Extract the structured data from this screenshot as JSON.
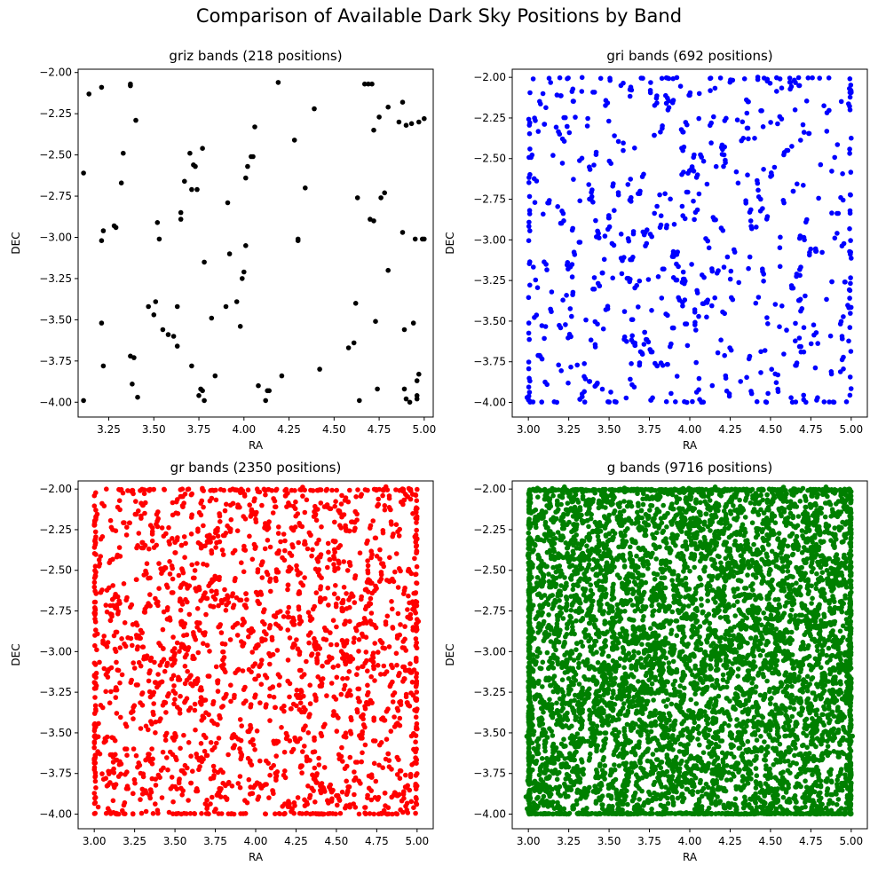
{
  "figure": {
    "title": "Comparison of Available Dark Sky Positions by Band"
  },
  "chart_data": [
    {
      "type": "scatter",
      "title": "griz bands (218 positions)",
      "xlabel": "RA",
      "ylabel": "DEC",
      "xlim": [
        3.08,
        5.05
      ],
      "ylim": [
        -4.09,
        -1.98
      ],
      "xticks": [
        "3.25",
        "3.50",
        "3.75",
        "4.00",
        "4.25",
        "4.50",
        "4.75",
        "5.00"
      ],
      "yticks": [
        "-4.00",
        "-3.75",
        "-3.50",
        "-3.25",
        "-3.00",
        "-2.75",
        "-2.50",
        "-2.25",
        "-2.00"
      ],
      "color": "#000000",
      "points": [
        [
          3.11,
          -2.61
        ],
        [
          3.14,
          -2.13
        ],
        [
          3.21,
          -2.09
        ],
        [
          3.21,
          -3.02
        ],
        [
          3.22,
          -2.96
        ],
        [
          3.28,
          -2.93
        ],
        [
          3.29,
          -2.94
        ],
        [
          3.32,
          -2.67
        ],
        [
          3.33,
          -2.49
        ],
        [
          3.37,
          -2.07
        ],
        [
          3.37,
          -2.08
        ],
        [
          3.4,
          -2.29
        ],
        [
          3.21,
          -3.52
        ],
        [
          3.22,
          -3.78
        ],
        [
          3.11,
          -3.99
        ],
        [
          3.37,
          -3.72
        ],
        [
          3.38,
          -3.89
        ],
        [
          3.39,
          -3.73
        ],
        [
          3.41,
          -3.97
        ],
        [
          3.47,
          -3.42
        ],
        [
          3.5,
          -3.47
        ],
        [
          3.51,
          -3.39
        ],
        [
          3.52,
          -2.91
        ],
        [
          3.53,
          -3.01
        ],
        [
          3.55,
          -3.56
        ],
        [
          3.58,
          -3.59
        ],
        [
          3.61,
          -3.6
        ],
        [
          3.63,
          -3.42
        ],
        [
          3.63,
          -3.66
        ],
        [
          3.65,
          -2.85
        ],
        [
          3.65,
          -2.89
        ],
        [
          3.67,
          -2.66
        ],
        [
          3.7,
          -2.49
        ],
        [
          3.71,
          -2.71
        ],
        [
          3.72,
          -2.56
        ],
        [
          3.74,
          -2.71
        ],
        [
          3.73,
          -2.57
        ],
        [
          3.77,
          -2.46
        ],
        [
          3.78,
          -3.15
        ],
        [
          3.71,
          -3.78
        ],
        [
          3.75,
          -3.96
        ],
        [
          3.76,
          -3.92
        ],
        [
          3.78,
          -3.99
        ],
        [
          3.82,
          -3.49
        ],
        [
          3.84,
          -3.84
        ],
        [
          3.9,
          -3.42
        ],
        [
          3.91,
          -2.79
        ],
        [
          3.92,
          -3.1
        ],
        [
          3.96,
          -3.39
        ],
        [
          3.98,
          -3.54
        ],
        [
          3.99,
          -3.25
        ],
        [
          4.0,
          -3.21
        ],
        [
          4.01,
          -3.05
        ],
        [
          4.01,
          -2.64
        ],
        [
          4.02,
          -2.57
        ],
        [
          4.04,
          -2.51
        ],
        [
          4.05,
          -2.51
        ],
        [
          4.06,
          -2.33
        ],
        [
          4.08,
          -3.9
        ],
        [
          4.12,
          -3.99
        ],
        [
          4.13,
          -3.93
        ],
        [
          4.14,
          -3.93
        ],
        [
          4.19,
          -2.06
        ],
        [
          4.21,
          -3.84
        ],
        [
          4.28,
          -2.41
        ],
        [
          4.3,
          -3.02
        ],
        [
          4.3,
          -3.01
        ],
        [
          4.34,
          -2.7
        ],
        [
          4.39,
          -2.22
        ],
        [
          4.42,
          -3.8
        ],
        [
          4.58,
          -3.67
        ],
        [
          4.61,
          -3.64
        ],
        [
          4.62,
          -3.4
        ],
        [
          4.63,
          -2.76
        ],
        [
          4.64,
          -3.99
        ],
        [
          4.69,
          -2.07
        ],
        [
          4.71,
          -2.07
        ],
        [
          4.7,
          -2.89
        ],
        [
          4.72,
          -2.9
        ],
        [
          4.72,
          -2.35
        ],
        [
          4.73,
          -3.51
        ],
        [
          4.74,
          -3.92
        ],
        [
          4.75,
          -2.27
        ],
        [
          4.76,
          -2.76
        ],
        [
          4.78,
          -2.73
        ],
        [
          4.8,
          -3.2
        ],
        [
          4.8,
          -2.21
        ],
        [
          4.86,
          -2.3
        ],
        [
          4.88,
          -2.18
        ],
        [
          4.88,
          -2.97
        ],
        [
          4.89,
          -3.56
        ],
        [
          4.9,
          -2.32
        ],
        [
          4.89,
          -3.92
        ],
        [
          4.9,
          -3.98
        ],
        [
          4.92,
          -4.0
        ],
        [
          4.93,
          -2.31
        ],
        [
          4.94,
          -3.52
        ],
        [
          4.95,
          -3.01
        ],
        [
          4.96,
          -3.96
        ],
        [
          4.96,
          -3.87
        ],
        [
          4.97,
          -3.83
        ],
        [
          4.97,
          -2.3
        ],
        [
          4.99,
          -3.01
        ],
        [
          5.0,
          -3.01
        ],
        [
          5.0,
          -2.28
        ],
        [
          4.96,
          -3.98
        ],
        [
          3.77,
          -3.93
        ],
        [
          4.67,
          -2.07
        ]
      ]
    },
    {
      "type": "scatter",
      "title": "gri bands (692 positions)",
      "xlabel": "RA",
      "ylabel": "DEC",
      "xlim": [
        2.9,
        5.1
      ],
      "ylim": [
        -4.09,
        -1.95
      ],
      "xticks": [
        "3.00",
        "3.25",
        "3.50",
        "3.75",
        "4.00",
        "4.25",
        "4.50",
        "4.75",
        "5.00"
      ],
      "yticks": [
        "-4.00",
        "-3.75",
        "-3.50",
        "-3.25",
        "-3.00",
        "-2.75",
        "-2.50",
        "-2.25",
        "-2.00"
      ],
      "color": "#0000ff",
      "n_random": 460,
      "seed": 7,
      "points": []
    },
    {
      "type": "scatter",
      "title": "gr bands (2350 positions)",
      "xlabel": "RA",
      "ylabel": "DEC",
      "xlim": [
        2.9,
        5.1
      ],
      "ylim": [
        -4.09,
        -1.95
      ],
      "xticks": [
        "3.00",
        "3.25",
        "3.50",
        "3.75",
        "4.00",
        "4.25",
        "4.50",
        "4.75",
        "5.00"
      ],
      "yticks": [
        "-4.00",
        "-3.75",
        "-3.50",
        "-3.25",
        "-3.00",
        "-2.75",
        "-2.50",
        "-2.25",
        "-2.00"
      ],
      "color": "#ff0000",
      "n_random": 1300,
      "seed": 13,
      "points": []
    },
    {
      "type": "scatter",
      "title": "g bands (9716 positions)",
      "xlabel": "RA",
      "ylabel": "DEC",
      "xlim": [
        2.9,
        5.1
      ],
      "ylim": [
        -4.09,
        -1.95
      ],
      "xticks": [
        "3.00",
        "3.25",
        "3.50",
        "3.75",
        "4.00",
        "4.25",
        "4.50",
        "4.75",
        "5.00"
      ],
      "yticks": [
        "-4.00",
        "-3.75",
        "-3.50",
        "-3.25",
        "-3.00",
        "-2.75",
        "-2.50",
        "-2.25",
        "-2.00"
      ],
      "color": "#008000",
      "n_random": 4200,
      "seed": 29,
      "points": []
    }
  ]
}
